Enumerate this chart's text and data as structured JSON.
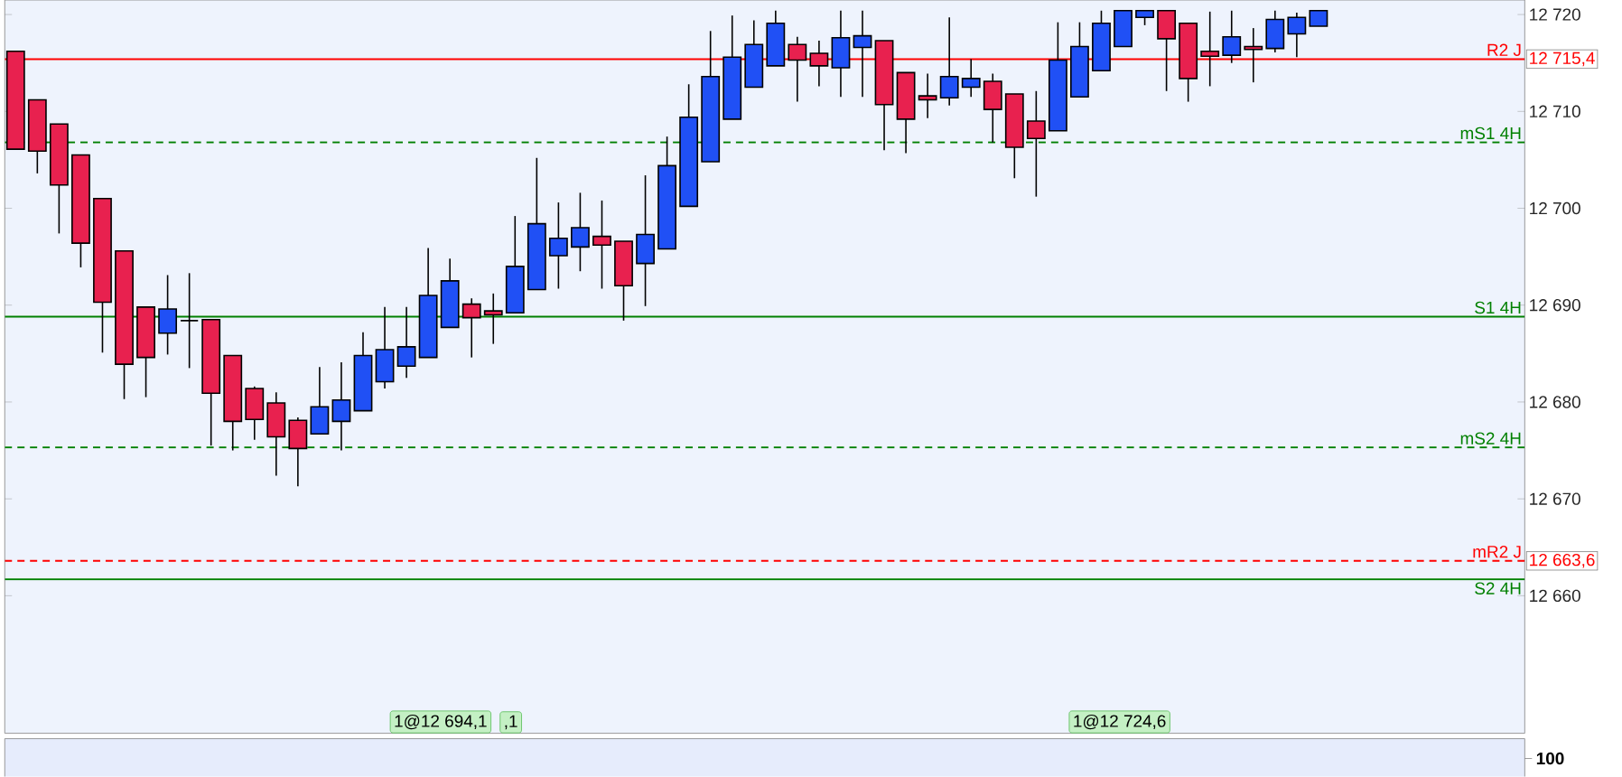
{
  "chart_data": [
    {
      "type": "candlestick",
      "categories": [
        null,
        null,
        null,
        null,
        null,
        null,
        null,
        null,
        null,
        null,
        null,
        null,
        null,
        null,
        null,
        null,
        null,
        null,
        null,
        null,
        null,
        null,
        null,
        null,
        null,
        null,
        null,
        null,
        null,
        null,
        null,
        null,
        null,
        null,
        null,
        null,
        null,
        null,
        null,
        null,
        null,
        null,
        null,
        null,
        null,
        null,
        null,
        null,
        null,
        null,
        null,
        null,
        null,
        null,
        null,
        null,
        null,
        null,
        null,
        null,
        null,
        null,
        null,
        null,
        null,
        null,
        null,
        null,
        null,
        null
      ],
      "ohlc": [
        [
          12716.2,
          12716.2,
          12706.1,
          12706.1
        ],
        [
          12711.2,
          12711.2,
          12703.6,
          12705.9
        ],
        [
          12708.7,
          12708.7,
          12697.4,
          12702.4
        ],
        [
          12705.5,
          12705.5,
          12693.9,
          12696.4
        ],
        [
          12701.0,
          12701.0,
          12685.1,
          12690.3
        ],
        [
          12695.6,
          12695.6,
          12680.3,
          12683.9
        ],
        [
          12689.8,
          12689.8,
          12680.5,
          12684.6
        ],
        [
          12687.1,
          12693.1,
          12684.9,
          12689.6
        ],
        [
          12688.4,
          12693.3,
          12683.5,
          12688.4
        ],
        [
          12688.5,
          12688.5,
          12675.5,
          12680.9
        ],
        [
          12684.8,
          12684.8,
          12675.0,
          12678.0
        ],
        [
          12681.4,
          12681.6,
          12676.1,
          12678.2
        ],
        [
          12679.9,
          12681.0,
          12672.4,
          12676.4
        ],
        [
          12678.1,
          12678.4,
          12671.3,
          12675.2
        ],
        [
          12676.7,
          12683.6,
          12676.7,
          12679.5
        ],
        [
          12678.0,
          12684.1,
          12675.0,
          12680.2
        ],
        [
          12679.1,
          12687.2,
          12679.1,
          12684.8
        ],
        [
          12682.1,
          12689.8,
          12681.4,
          12685.4
        ],
        [
          12683.7,
          12689.8,
          12682.5,
          12685.7
        ],
        [
          12684.6,
          12695.9,
          12684.6,
          12691.0
        ],
        [
          12687.7,
          12694.8,
          12687.7,
          12692.5
        ],
        [
          12690.1,
          12690.7,
          12684.6,
          12688.7
        ],
        [
          12689.4,
          12691.2,
          12686.0,
          12689.0
        ],
        [
          12689.2,
          12699.2,
          12689.2,
          12694.0
        ],
        [
          12691.6,
          12705.2,
          12691.6,
          12698.4
        ],
        [
          12695.1,
          12700.6,
          12691.7,
          12696.9
        ],
        [
          12696.0,
          12701.6,
          12693.5,
          12698.0
        ],
        [
          12697.1,
          12700.8,
          12691.7,
          12696.2
        ],
        [
          12696.6,
          12696.6,
          12688.4,
          12692.0
        ],
        [
          12694.3,
          12703.4,
          12689.9,
          12697.3
        ],
        [
          12695.8,
          12707.4,
          12695.8,
          12704.4
        ],
        [
          12700.2,
          12712.8,
          12700.2,
          12709.4
        ],
        [
          12704.8,
          12718.3,
          12704.8,
          12713.6
        ],
        [
          12709.2,
          12719.9,
          12709.2,
          12715.6
        ],
        [
          12712.5,
          12719.4,
          12712.5,
          12716.9
        ],
        [
          12714.7,
          12720.4,
          12714.7,
          12719.1
        ],
        [
          12716.9,
          12717.7,
          12711.0,
          12715.3
        ],
        [
          12716.0,
          12717.3,
          12712.6,
          12714.7
        ],
        [
          12714.5,
          12720.4,
          12711.5,
          12717.6
        ],
        [
          12716.6,
          12720.4,
          12711.5,
          12717.8
        ],
        [
          12717.3,
          12717.3,
          12706.0,
          12710.7
        ],
        [
          12714.0,
          12714.0,
          12705.7,
          12709.2
        ],
        [
          12711.6,
          12713.9,
          12709.3,
          12711.2
        ],
        [
          12711.4,
          12719.7,
          12710.6,
          12713.6
        ],
        [
          12712.5,
          12715.4,
          12711.5,
          12713.4
        ],
        [
          12713.1,
          12713.9,
          12706.8,
          12710.2
        ],
        [
          12711.8,
          12711.8,
          12703.1,
          12706.3
        ],
        [
          12709.0,
          12712.1,
          12701.2,
          12707.2
        ],
        [
          12708.0,
          12719.2,
          12708.0,
          12715.3
        ],
        [
          12711.5,
          12719.2,
          12711.5,
          12716.7
        ],
        [
          12714.2,
          12720.4,
          12714.2,
          12719.1
        ],
        [
          12716.7,
          12720.4,
          12716.7,
          12720.4
        ],
        [
          12719.7,
          12720.4,
          12718.9,
          12720.4
        ],
        [
          12720.4,
          12720.4,
          12712.1,
          12717.5
        ],
        [
          12719.1,
          12719.1,
          12711.0,
          12713.4
        ],
        [
          12716.2,
          12720.3,
          12712.6,
          12715.7
        ],
        [
          12715.8,
          12720.4,
          12715.0,
          12717.7
        ],
        [
          12716.7,
          12718.6,
          12713.0,
          12716.4
        ],
        [
          12716.5,
          12720.4,
          12716.1,
          12719.5
        ],
        [
          12718.0,
          12720.2,
          12715.6,
          12719.7
        ],
        [
          12718.8,
          12720.4,
          12718.8,
          12720.4
        ],
        null,
        null,
        null,
        null,
        null,
        null,
        null,
        null,
        null
      ],
      "colors": [
        "#e8214f",
        "#e8214f",
        "#e8214f",
        "#e8214f",
        "#e8214f",
        "#e8214f",
        "#e8214f",
        "#2050f5",
        "#000000",
        "#e8214f",
        "#e8214f",
        "#e8214f",
        "#e8214f",
        "#e8214f",
        "#2050f5",
        "#2050f5",
        "#2050f5",
        "#2050f5",
        "#2050f5",
        "#2050f5",
        "#2050f5",
        "#e8214f",
        "#e8214f",
        "#2050f5",
        "#2050f5",
        "#2050f5",
        "#2050f5",
        "#e8214f",
        "#e8214f",
        "#2050f5",
        "#2050f5",
        "#2050f5",
        "#2050f5",
        "#2050f5",
        "#2050f5",
        "#2050f5",
        "#e8214f",
        "#e8214f",
        "#2050f5",
        "#2050f5",
        "#e8214f",
        "#e8214f",
        "#e8214f",
        "#2050f5",
        "#2050f5",
        "#e8214f",
        "#e8214f",
        "#e8214f",
        "#2050f5",
        "#2050f5",
        "#2050f5",
        "#2050f5",
        "#2050f5",
        "#e8214f",
        "#e8214f",
        "#e8214f",
        "#2050f5",
        "#e8214f",
        "#2050f5",
        "#2050f5",
        "#2050f5",
        null,
        null,
        null,
        null,
        null,
        null,
        null,
        null,
        null
      ],
      "ylim": [
        12645.8,
        12721.5
      ],
      "yticks": [
        {
          "value": 12660,
          "label": "12 660"
        },
        {
          "value": 12663.6,
          "label": "12 663,6"
        },
        {
          "value": 12670,
          "label": "12 670"
        },
        {
          "value": 12680,
          "label": "12 680"
        },
        {
          "value": 12690,
          "label": "12 690"
        },
        {
          "value": 12700,
          "label": "12 700"
        },
        {
          "value": 12710,
          "label": "12 710"
        },
        {
          "value": 12715.4,
          "label": "12 715,4"
        },
        {
          "value": 12720,
          "label": "12 720"
        }
      ],
      "ref_lines": [
        {
          "axis": "y",
          "value": 12715.4,
          "label": "R2 J",
          "color": "#ff0000",
          "line_style": "solid"
        },
        {
          "axis": "y",
          "value": 12706.8,
          "label": "mS1 4H",
          "color": "#008000",
          "line_style": "dashed"
        },
        {
          "axis": "y",
          "value": 12688.8,
          "label": "S1 4H",
          "color": "#008000",
          "line_style": "solid"
        },
        {
          "axis": "y",
          "value": 12675.3,
          "label": "mS2 4H",
          "color": "#008000",
          "line_style": "dashed"
        },
        {
          "axis": "y",
          "value": 12663.6,
          "label": "mR2 J",
          "color": "#ff0000",
          "line_style": "dashed"
        },
        {
          "axis": "y",
          "value": 12661.7,
          "label": "S2 4H",
          "color": "#008000",
          "line_style": "solid"
        }
      ],
      "annotations": [
        "1@12 694,1",
        ",1",
        "1@12 724,6"
      ],
      "grid": false
    },
    {
      "type": "other",
      "annotations": [
        "100"
      ]
    }
  ]
}
